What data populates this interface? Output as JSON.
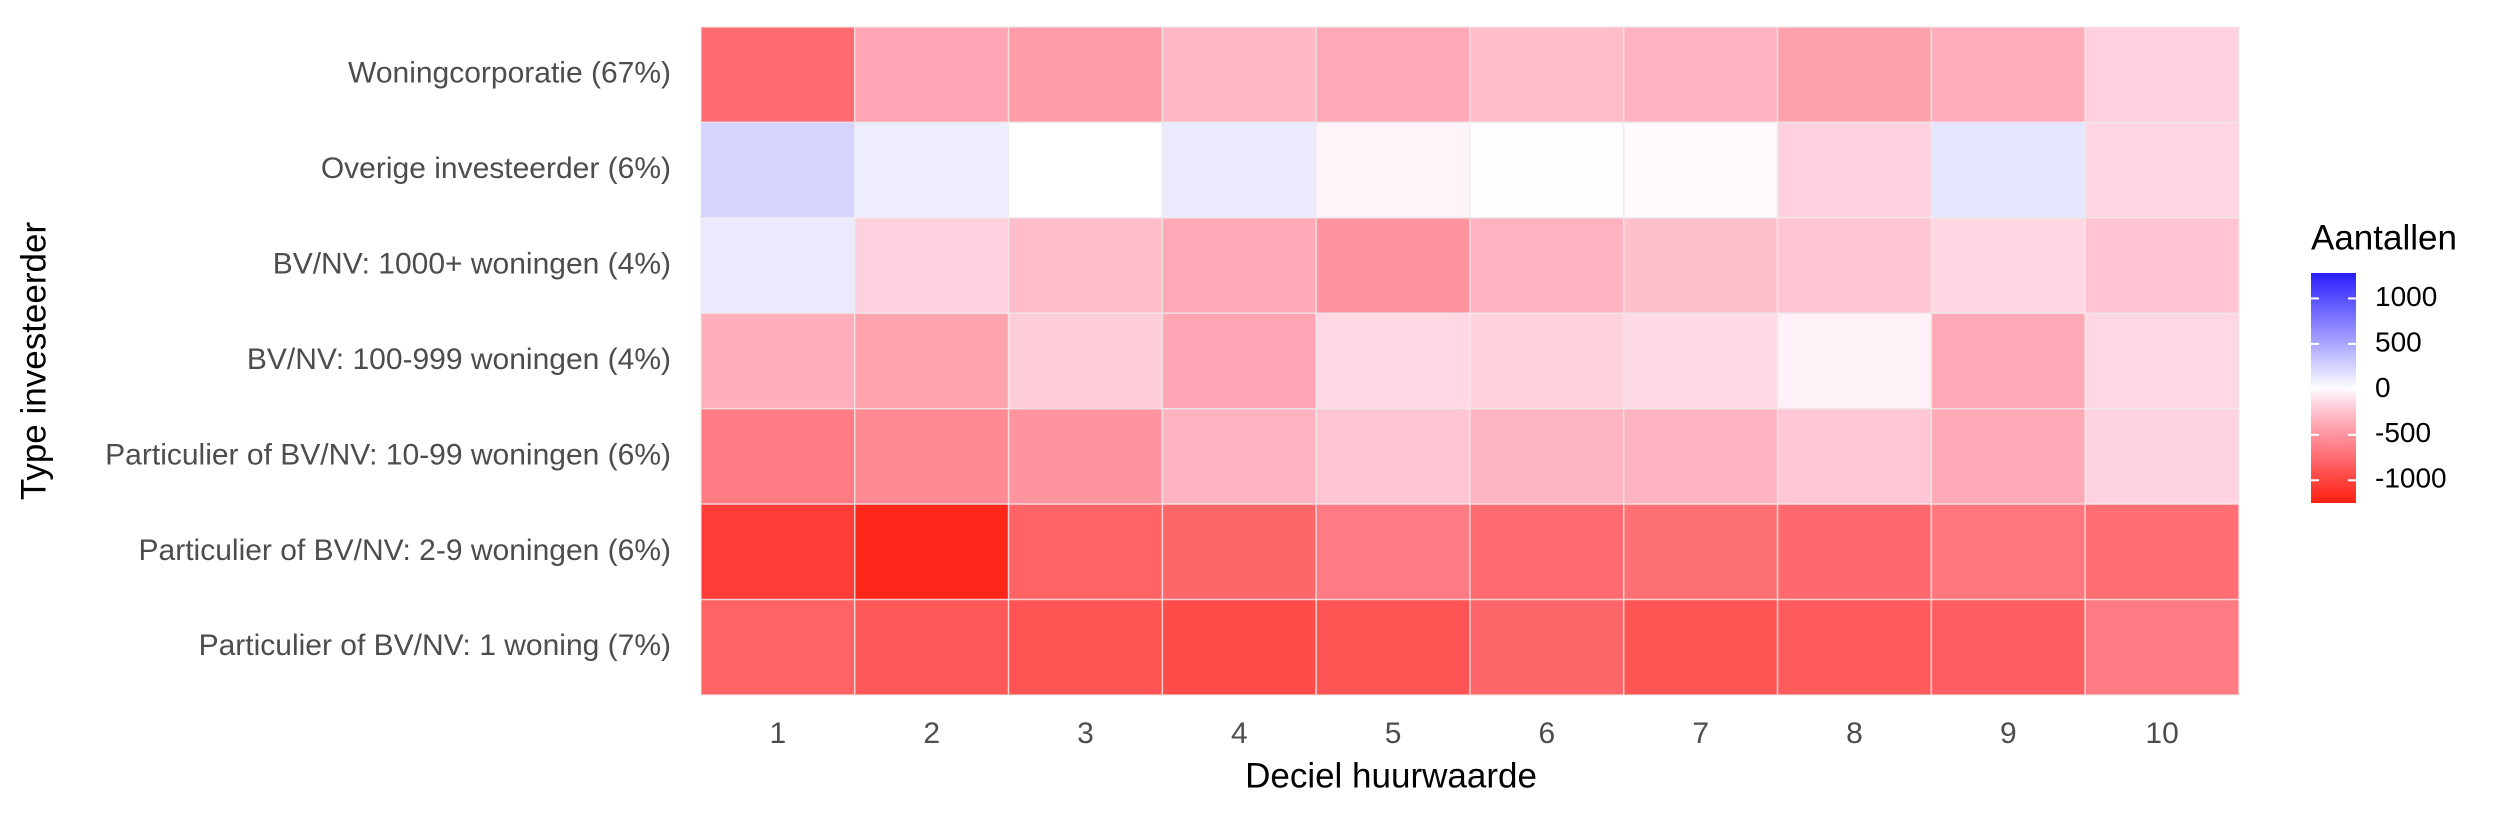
{
  "chart_data": {
    "type": "heatmap",
    "x_label": "Deciel huurwaarde",
    "y_label": "Type investeerder",
    "categories": [
      "1",
      "2",
      "3",
      "4",
      "5",
      "6",
      "7",
      "8",
      "9",
      "10"
    ],
    "y_categories": [
      "Woningcorporatie (67%)",
      "Overige investeerder (6%)",
      "BV/NV: 1000+ woningen (4%)",
      "BV/NV: 100-999 woningen (4%)",
      "Particulier of BV/NV: 10-99 woningen (6%)",
      "Particulier of BV/NV: 2-9 woningen (6%)",
      "Particulier of BV/NV: 1 woning (7%)"
    ],
    "values": [
      [
        -750,
        -400,
        -450,
        -300,
        -380,
        -280,
        -330,
        -430,
        -350,
        -180
      ],
      [
        250,
        100,
        0,
        120,
        -30,
        10,
        -10,
        -180,
        150,
        -150
      ],
      [
        120,
        -180,
        -280,
        -380,
        -500,
        -330,
        -260,
        -230,
        -150,
        -240
      ],
      [
        -350,
        -420,
        -200,
        -400,
        -140,
        -170,
        -130,
        -40,
        -380,
        -140
      ],
      [
        -650,
        -560,
        -500,
        -330,
        -230,
        -320,
        -330,
        -220,
        -380,
        -160
      ],
      [
        -1050,
        -1200,
        -800,
        -780,
        -650,
        -750,
        -720,
        -760,
        -680,
        -730
      ],
      [
        -800,
        -870,
        -900,
        -950,
        -900,
        -780,
        -900,
        -850,
        -830,
        -650
      ]
    ],
    "legend_title": "Aantallen",
    "clim": [
      -1250,
      1280
    ],
    "legend_ticks": [
      1000,
      500,
      0,
      -500,
      -1000
    ],
    "colors": {
      "low": "#ff2010",
      "mid": "#ffffff",
      "high": "#2a1eff"
    }
  }
}
